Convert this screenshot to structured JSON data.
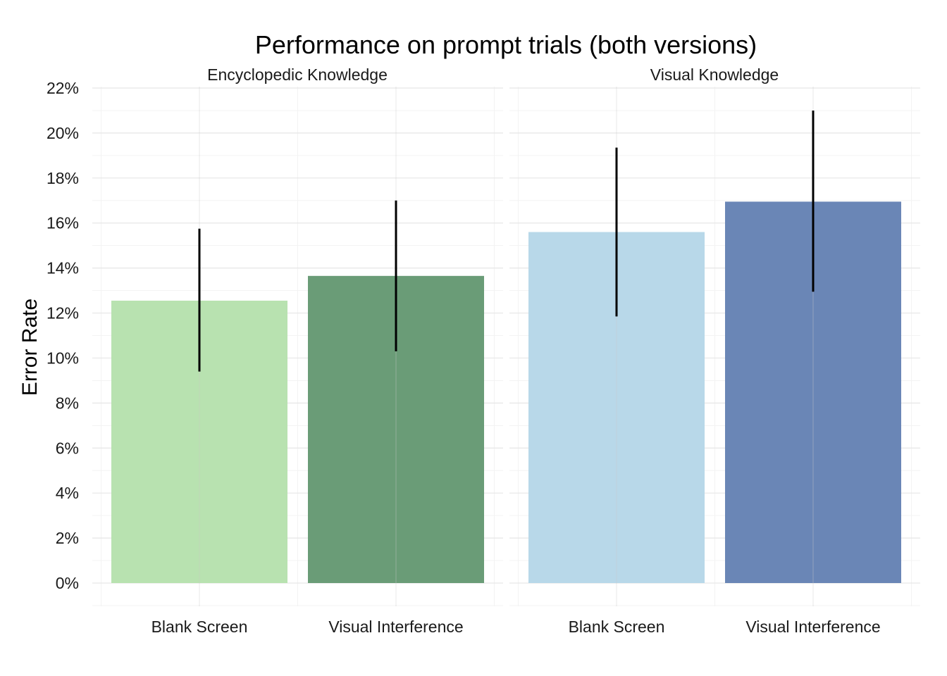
{
  "chart_data": {
    "type": "bar",
    "title": "Performance on prompt trials (both versions)",
    "ylabel": "Error Rate",
    "xlabel": "",
    "ylim": [
      0,
      0.22
    ],
    "y_ticks": [
      "0%",
      "2%",
      "4%",
      "6%",
      "8%",
      "10%",
      "12%",
      "14%",
      "16%",
      "18%",
      "20%",
      "22%"
    ],
    "grid": true,
    "legend": "none",
    "categories": [
      "Blank Screen",
      "Visual Interference"
    ],
    "facets": [
      {
        "label": "Encyclopedic Knowledge",
        "bars": [
          {
            "category": "Blank Screen",
            "value": 0.1255,
            "error_low": 0.094,
            "error_high": 0.1575,
            "color": "#b8e2b0"
          },
          {
            "category": "Visual Interference",
            "value": 0.1365,
            "error_low": 0.103,
            "error_high": 0.17,
            "color": "#6a9c77"
          }
        ]
      },
      {
        "label": "Visual Knowledge",
        "bars": [
          {
            "category": "Blank Screen",
            "value": 0.156,
            "error_low": 0.1185,
            "error_high": 0.1935,
            "color": "#b8d8e9"
          },
          {
            "category": "Visual Interference",
            "value": 0.1695,
            "error_low": 0.1295,
            "error_high": 0.21,
            "color": "#6a86b6"
          }
        ]
      }
    ]
  }
}
